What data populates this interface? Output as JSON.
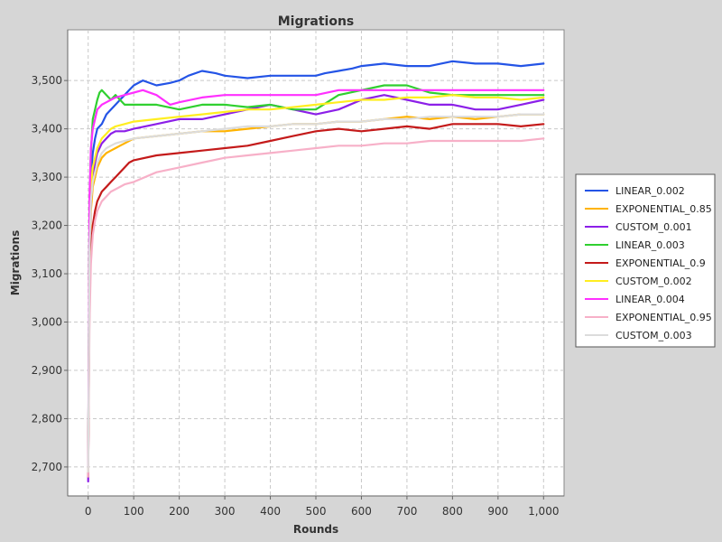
{
  "chart_data": {
    "type": "line",
    "title": "Migrations",
    "xlabel": "Rounds",
    "ylabel": "Migrations",
    "xlim": [
      -45,
      1045
    ],
    "ylim": [
      2640,
      3605
    ],
    "x_ticks": [
      0,
      100,
      200,
      300,
      400,
      500,
      600,
      700,
      800,
      900,
      1000
    ],
    "x_tick_labels": [
      "0",
      "100",
      "200",
      "300",
      "400",
      "500",
      "600",
      "700",
      "800",
      "900",
      "1,000"
    ],
    "y_ticks": [
      2700,
      2800,
      2900,
      3000,
      3100,
      3200,
      3300,
      3400,
      3500
    ],
    "y_tick_labels": [
      "2,700",
      "2,800",
      "2,900",
      "3,000",
      "3,100",
      "3,200",
      "3,300",
      "3,400",
      "3,500"
    ],
    "grid": true,
    "legend_position": "right",
    "series": [
      {
        "name": "LINEAR_0.002",
        "color": "#2454e6",
        "x": [
          0,
          3,
          6,
          10,
          15,
          20,
          30,
          40,
          50,
          60,
          70,
          80,
          90,
          100,
          120,
          150,
          180,
          200,
          220,
          250,
          280,
          300,
          350,
          400,
          450,
          500,
          520,
          550,
          580,
          600,
          650,
          700,
          750,
          800,
          850,
          900,
          950,
          1000
        ],
        "y": [
          2690,
          3180,
          3300,
          3350,
          3380,
          3400,
          3410,
          3430,
          3440,
          3450,
          3460,
          3470,
          3480,
          3490,
          3500,
          3490,
          3495,
          3500,
          3510,
          3520,
          3515,
          3510,
          3505,
          3510,
          3510,
          3510,
          3515,
          3520,
          3525,
          3530,
          3535,
          3530,
          3530,
          3540,
          3535,
          3535,
          3530,
          3535
        ]
      },
      {
        "name": "EXPONENTIAL_0.85",
        "color": "#ffb300",
        "x": [
          0,
          3,
          6,
          10,
          15,
          20,
          30,
          40,
          50,
          60,
          70,
          80,
          90,
          100,
          150,
          200,
          250,
          300,
          350,
          400,
          450,
          500,
          550,
          600,
          650,
          700,
          750,
          800,
          850,
          900,
          950,
          1000
        ],
        "y": [
          2690,
          3130,
          3230,
          3280,
          3300,
          3320,
          3340,
          3350,
          3355,
          3360,
          3365,
          3370,
          3375,
          3380,
          3385,
          3390,
          3395,
          3395,
          3400,
          3405,
          3410,
          3410,
          3415,
          3415,
          3420,
          3425,
          3420,
          3425,
          3420,
          3425,
          3430,
          3430
        ]
      },
      {
        "name": "CUSTOM_0.001",
        "color": "#8c1fe8",
        "x": [
          0,
          3,
          6,
          10,
          15,
          20,
          30,
          40,
          50,
          60,
          80,
          100,
          150,
          200,
          250,
          300,
          350,
          400,
          450,
          500,
          550,
          600,
          650,
          700,
          750,
          800,
          850,
          900,
          950,
          1000
        ],
        "y": [
          2670,
          3150,
          3250,
          3300,
          3330,
          3350,
          3370,
          3380,
          3390,
          3395,
          3395,
          3400,
          3410,
          3420,
          3420,
          3430,
          3440,
          3450,
          3440,
          3430,
          3440,
          3460,
          3470,
          3460,
          3450,
          3450,
          3440,
          3440,
          3450,
          3460
        ]
      },
      {
        "name": "LINEAR_0.003",
        "color": "#30d030",
        "x": [
          0,
          3,
          6,
          10,
          15,
          20,
          25,
          30,
          40,
          50,
          60,
          70,
          80,
          100,
          150,
          200,
          250,
          300,
          350,
          400,
          450,
          500,
          550,
          600,
          650,
          700,
          750,
          800,
          850,
          900,
          950,
          1000
        ],
        "y": [
          2690,
          3230,
          3350,
          3420,
          3440,
          3460,
          3475,
          3480,
          3470,
          3460,
          3470,
          3460,
          3450,
          3450,
          3450,
          3440,
          3450,
          3450,
          3445,
          3450,
          3440,
          3440,
          3470,
          3480,
          3490,
          3490,
          3475,
          3470,
          3470,
          3470,
          3470,
          3470
        ]
      },
      {
        "name": "EXPONENTIAL_0.9",
        "color": "#c41a1a",
        "x": [
          0,
          3,
          6,
          10,
          15,
          20,
          30,
          40,
          50,
          60,
          70,
          80,
          90,
          100,
          150,
          200,
          250,
          300,
          350,
          400,
          450,
          500,
          550,
          600,
          650,
          700,
          750,
          800,
          850,
          900,
          950,
          1000
        ],
        "y": [
          2680,
          3060,
          3150,
          3200,
          3230,
          3250,
          3270,
          3280,
          3290,
          3300,
          3310,
          3320,
          3330,
          3335,
          3345,
          3350,
          3355,
          3360,
          3365,
          3375,
          3385,
          3395,
          3400,
          3395,
          3400,
          3405,
          3400,
          3410,
          3410,
          3410,
          3405,
          3410
        ]
      },
      {
        "name": "CUSTOM_0.002",
        "color": "#ffee20",
        "x": [
          0,
          3,
          6,
          10,
          15,
          20,
          30,
          40,
          50,
          60,
          80,
          100,
          150,
          200,
          250,
          300,
          350,
          400,
          450,
          500,
          550,
          600,
          650,
          700,
          750,
          800,
          850,
          900,
          950,
          1000
        ],
        "y": [
          2690,
          3180,
          3280,
          3320,
          3340,
          3360,
          3380,
          3390,
          3400,
          3405,
          3410,
          3415,
          3420,
          3425,
          3430,
          3435,
          3440,
          3440,
          3445,
          3450,
          3455,
          3460,
          3460,
          3465,
          3465,
          3470,
          3465,
          3465,
          3460,
          3465
        ]
      },
      {
        "name": "LINEAR_0.004",
        "color": "#ff30ff",
        "x": [
          0,
          3,
          6,
          10,
          15,
          20,
          30,
          40,
          50,
          60,
          80,
          100,
          120,
          150,
          180,
          200,
          250,
          300,
          350,
          400,
          450,
          500,
          550,
          600,
          650,
          700,
          750,
          800,
          850,
          900,
          950,
          1000
        ],
        "y": [
          2700,
          3260,
          3360,
          3400,
          3420,
          3440,
          3450,
          3455,
          3460,
          3465,
          3470,
          3475,
          3480,
          3470,
          3450,
          3455,
          3465,
          3470,
          3470,
          3470,
          3470,
          3470,
          3480,
          3480,
          3480,
          3480,
          3480,
          3480,
          3480,
          3480,
          3480,
          3480
        ]
      },
      {
        "name": "EXPONENTIAL_0.95",
        "color": "#f7b0c8",
        "x": [
          0,
          3,
          6,
          10,
          15,
          20,
          30,
          40,
          50,
          60,
          80,
          100,
          150,
          200,
          250,
          300,
          350,
          400,
          450,
          500,
          550,
          600,
          650,
          700,
          750,
          800,
          850,
          900,
          950,
          1000
        ],
        "y": [
          2680,
          3000,
          3120,
          3180,
          3210,
          3230,
          3250,
          3260,
          3270,
          3275,
          3285,
          3290,
          3310,
          3320,
          3330,
          3340,
          3345,
          3350,
          3355,
          3360,
          3365,
          3365,
          3370,
          3370,
          3375,
          3375,
          3375,
          3375,
          3375,
          3380
        ]
      },
      {
        "name": "CUSTOM_0.003",
        "color": "#dcdcdc",
        "x": [
          0,
          3,
          6,
          10,
          15,
          20,
          30,
          40,
          50,
          60,
          80,
          100,
          150,
          200,
          250,
          300,
          350,
          400,
          450,
          500,
          550,
          600,
          650,
          700,
          750,
          800,
          850,
          900,
          950,
          1000
        ],
        "y": [
          2690,
          3150,
          3250,
          3290,
          3310,
          3330,
          3350,
          3360,
          3365,
          3370,
          3375,
          3380,
          3385,
          3390,
          3395,
          3400,
          3405,
          3405,
          3410,
          3410,
          3415,
          3415,
          3420,
          3420,
          3425,
          3425,
          3425,
          3425,
          3430,
          3430
        ]
      }
    ]
  }
}
